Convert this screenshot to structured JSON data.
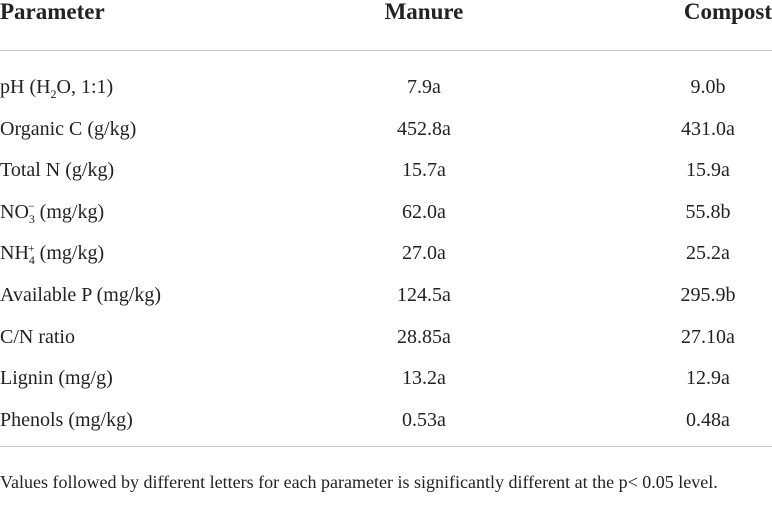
{
  "table": {
    "header": [
      "Parameter",
      "Manure",
      "Compost"
    ],
    "rows": [
      [
        [
          {
            "text": "pH (H"
          },
          {
            "sub": "2"
          },
          {
            "text": "O, 1:1)"
          }
        ],
        "7.9a",
        "9.0b"
      ],
      [
        [
          {
            "text": "Organic C (g/kg)"
          }
        ],
        "452.8a",
        "431.0a"
      ],
      [
        [
          {
            "text": "Total N (g/kg)"
          }
        ],
        "15.7a",
        "15.9a"
      ],
      [
        [
          {
            "text": "NO"
          },
          {
            "sub": "3"
          },
          {
            "sup": "−"
          },
          {
            "text": " (mg/kg)"
          }
        ],
        "62.0a",
        "55.8b"
      ],
      [
        [
          {
            "text": "NH"
          },
          {
            "sub": "4"
          },
          {
            "sup": "+"
          },
          {
            "text": " (mg/kg)"
          }
        ],
        "27.0a",
        "25.2a"
      ],
      [
        [
          {
            "text": "Available P (mg/kg)"
          }
        ],
        "124.5a",
        "295.9b"
      ],
      [
        [
          {
            "text": "C/N ratio"
          }
        ],
        "28.85a",
        "27.10a"
      ],
      [
        [
          {
            "text": "Lignin (mg/g)"
          }
        ],
        "13.2a",
        "12.9a"
      ],
      [
        [
          {
            "text": "Phenols (mg/kg)"
          }
        ],
        "0.53a",
        "0.48a"
      ]
    ],
    "footnote": "Values followed by different letters for each parameter is significantly different at the p< 0.05 level."
  }
}
